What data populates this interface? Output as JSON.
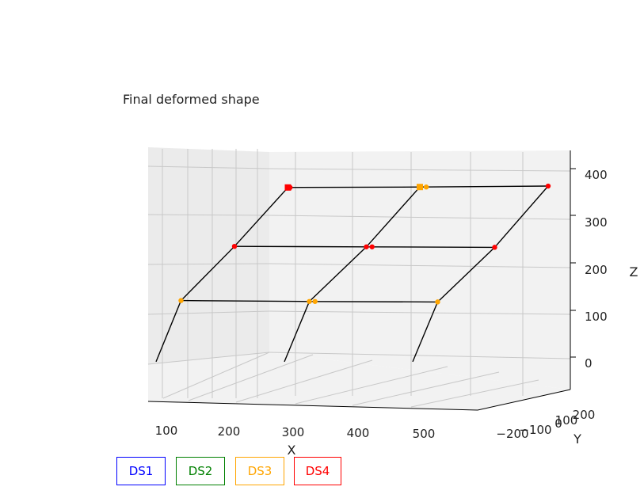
{
  "chart_data": {
    "type": "3d-line",
    "title": "Final deformed shape",
    "xlabel": "X",
    "ylabel": "Y",
    "zlabel": "Z",
    "x_ticks": [
      "100",
      "200",
      "300",
      "400",
      "500"
    ],
    "y_ticks": [
      "−200",
      "−100",
      "0",
      "100",
      "200"
    ],
    "z_ticks": [
      "0",
      "100",
      "200",
      "300",
      "400"
    ],
    "frame_columns": [
      {
        "name": "left",
        "nodes": [
          [
            130,
            0,
            -10
          ],
          [
            165,
            0,
            120
          ],
          [
            240,
            0,
            235
          ],
          [
            315,
            0,
            360
          ]
        ]
      },
      {
        "name": "middle",
        "nodes": [
          [
            310,
            0,
            -10
          ],
          [
            345,
            0,
            118
          ],
          [
            425,
            0,
            234
          ],
          [
            500,
            0,
            361
          ]
        ]
      },
      {
        "name": "right",
        "nodes": [
          [
            490,
            0,
            -10
          ],
          [
            525,
            0,
            117
          ],
          [
            605,
            0,
            233
          ],
          [
            680,
            0,
            363
          ]
        ]
      }
    ],
    "frame_beams": [
      {
        "level": "first",
        "nodes": [
          [
            165,
            0,
            120
          ],
          [
            345,
            0,
            118
          ],
          [
            525,
            0,
            117
          ]
        ]
      },
      {
        "level": "second",
        "nodes": [
          [
            240,
            0,
            235
          ],
          [
            425,
            0,
            234
          ],
          [
            605,
            0,
            233
          ]
        ]
      },
      {
        "level": "roof",
        "nodes": [
          [
            315,
            0,
            360
          ],
          [
            500,
            0,
            361
          ],
          [
            680,
            0,
            363
          ]
        ]
      }
    ],
    "markers": {
      "first_floor_color": "#ffa500",
      "upper_floor_color": "#ff0000"
    },
    "line_color": "#000000"
  },
  "legend": [
    {
      "label": "DS1",
      "color": "#0000ff"
    },
    {
      "label": "DS2",
      "color": "#008000"
    },
    {
      "label": "DS3",
      "color": "#ffa500"
    },
    {
      "label": "DS4",
      "color": "#ff0000"
    }
  ]
}
